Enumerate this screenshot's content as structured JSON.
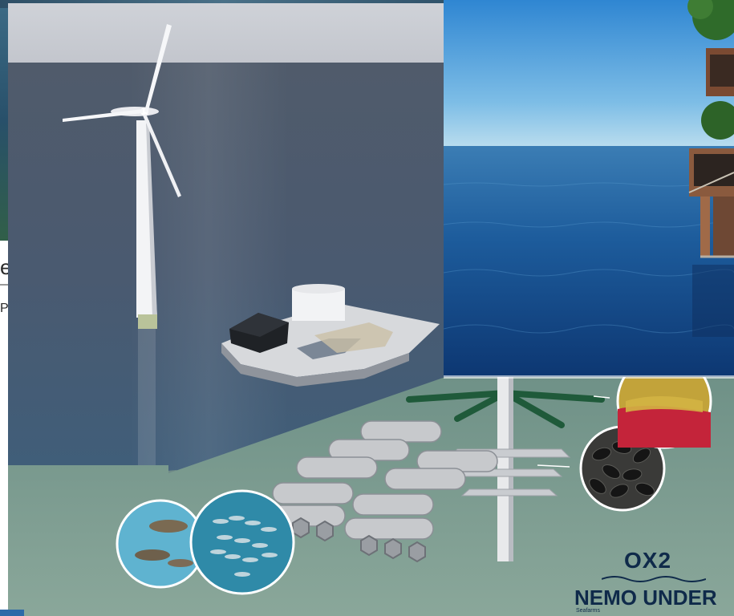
{
  "background_fragment": {
    "letter_1": "e",
    "letter_2": "Pr"
  },
  "logos": {
    "ox2": "OX2",
    "nemo": "NEMO UNDER",
    "nemo_sub": "Seafarms"
  },
  "colors": {
    "sky_top": "#3d8fd4",
    "sea_deep": "#0f3c78",
    "render_sky": "#c9ccd2",
    "render_water": "#4d5b6e",
    "seabed": "#7f9c8e",
    "logo_navy": "#0f2a4a"
  }
}
